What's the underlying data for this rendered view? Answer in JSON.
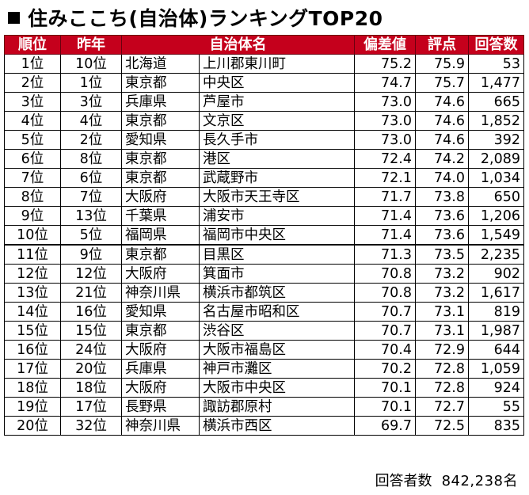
{
  "title": "住みここち(自治体)ランキングTOP20",
  "headers": {
    "rank": "順位",
    "prev": "昨年",
    "municipality": "自治体名",
    "deviation": "偏差値",
    "score": "評点",
    "respondents": "回答数"
  },
  "rows": [
    {
      "rank": "1位",
      "prev": "10位",
      "pref": "北海道",
      "city": "上川郡東川町",
      "deviation": "75.2",
      "score": "75.9",
      "respondents": "53"
    },
    {
      "rank": "2位",
      "prev": "1位",
      "pref": "東京都",
      "city": "中央区",
      "deviation": "74.7",
      "score": "75.7",
      "respondents": "1,477"
    },
    {
      "rank": "3位",
      "prev": "3位",
      "pref": "兵庫県",
      "city": "芦屋市",
      "deviation": "73.0",
      "score": "74.6",
      "respondents": "665"
    },
    {
      "rank": "4位",
      "prev": "4位",
      "pref": "東京都",
      "city": "文京区",
      "deviation": "73.0",
      "score": "74.6",
      "respondents": "1,852"
    },
    {
      "rank": "5位",
      "prev": "2位",
      "pref": "愛知県",
      "city": "長久手市",
      "deviation": "73.0",
      "score": "74.6",
      "respondents": "392"
    },
    {
      "rank": "6位",
      "prev": "8位",
      "pref": "東京都",
      "city": "港区",
      "deviation": "72.4",
      "score": "74.2",
      "respondents": "2,089"
    },
    {
      "rank": "7位",
      "prev": "6位",
      "pref": "東京都",
      "city": "武蔵野市",
      "deviation": "72.1",
      "score": "74.0",
      "respondents": "1,034"
    },
    {
      "rank": "8位",
      "prev": "7位",
      "pref": "大阪府",
      "city": "大阪市天王寺区",
      "deviation": "71.7",
      "score": "73.8",
      "respondents": "650"
    },
    {
      "rank": "9位",
      "prev": "13位",
      "pref": "千葉県",
      "city": "浦安市",
      "deviation": "71.4",
      "score": "73.6",
      "respondents": "1,206"
    },
    {
      "rank": "10位",
      "prev": "5位",
      "pref": "福岡県",
      "city": "福岡市中央区",
      "deviation": "71.4",
      "score": "73.6",
      "respondents": "1,549"
    },
    {
      "rank": "11位",
      "prev": "9位",
      "pref": "東京都",
      "city": "目黒区",
      "deviation": "71.3",
      "score": "73.5",
      "respondents": "2,235"
    },
    {
      "rank": "12位",
      "prev": "12位",
      "pref": "大阪府",
      "city": "箕面市",
      "deviation": "70.8",
      "score": "73.2",
      "respondents": "902"
    },
    {
      "rank": "13位",
      "prev": "21位",
      "pref": "神奈川県",
      "city": "横浜市都筑区",
      "deviation": "70.8",
      "score": "73.2",
      "respondents": "1,617"
    },
    {
      "rank": "14位",
      "prev": "16位",
      "pref": "愛知県",
      "city": "名古屋市昭和区",
      "deviation": "70.7",
      "score": "73.1",
      "respondents": "819"
    },
    {
      "rank": "15位",
      "prev": "15位",
      "pref": "東京都",
      "city": "渋谷区",
      "deviation": "70.7",
      "score": "73.1",
      "respondents": "1,987"
    },
    {
      "rank": "16位",
      "prev": "24位",
      "pref": "大阪府",
      "city": "大阪市福島区",
      "deviation": "70.4",
      "score": "72.9",
      "respondents": "644"
    },
    {
      "rank": "17位",
      "prev": "20位",
      "pref": "兵庫県",
      "city": "神戸市灘区",
      "deviation": "70.2",
      "score": "72.8",
      "respondents": "1,059"
    },
    {
      "rank": "18位",
      "prev": "18位",
      "pref": "大阪府",
      "city": "大阪市中央区",
      "deviation": "70.1",
      "score": "72.8",
      "respondents": "924"
    },
    {
      "rank": "19位",
      "prev": "17位",
      "pref": "長野県",
      "city": "諏訪郡原村",
      "deviation": "70.1",
      "score": "72.7",
      "respondents": "55"
    },
    {
      "rank": "20位",
      "prev": "32位",
      "pref": "神奈川県",
      "city": "横浜市西区",
      "deviation": "69.7",
      "score": "72.5",
      "respondents": "835"
    }
  ],
  "footer": {
    "label": "回答者数",
    "value": "842,238名"
  },
  "colors": {
    "header_bg": "#c5001c",
    "header_text": "#ffffff"
  }
}
